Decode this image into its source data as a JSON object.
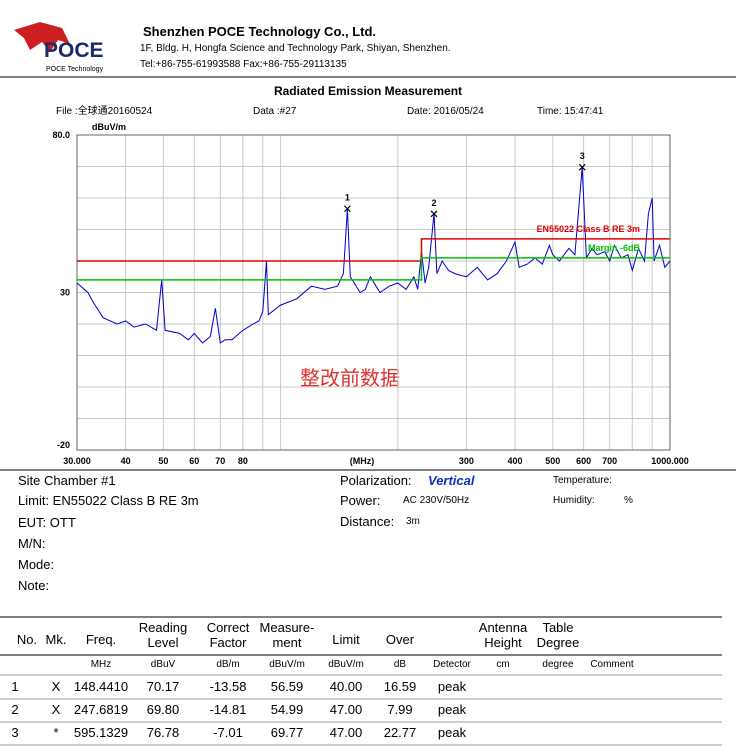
{
  "header": {
    "logo_text": "POCE",
    "logo_sub": "POCE Technology",
    "company": "Shenzhen POCE Technology Co., Ltd.",
    "address": "1F, Bldg. H, Hongfa Science and Technology Park, Shiyan, Shenzhen.",
    "contact": "Tel:+86-755-61993588   Fax:+86-755-29113135"
  },
  "report": {
    "title": "Radiated Emission Measurement",
    "file": "File :全球通20160524",
    "data": "Data :#27",
    "date": "Date: 2016/05/24",
    "time": "Time: 15:47:41"
  },
  "chart_data": {
    "type": "line",
    "xscale": "log",
    "grid": true,
    "x_label": "(MHz)",
    "y_label": "dBuV/m",
    "annotation": "整改前数据",
    "xlim": [
      30,
      1000
    ],
    "ylim": [
      -20,
      80
    ],
    "xticks": [
      {
        "value": 30,
        "label": "30.000"
      },
      40,
      50,
      60,
      70,
      80,
      300,
      400,
      500,
      600,
      700,
      {
        "value": 1000,
        "label": "1000.000"
      }
    ],
    "xminor": [
      90,
      100,
      200,
      800,
      900
    ],
    "yticks": [
      {
        "value": 80,
        "label": "80.0"
      },
      30,
      -20
    ],
    "yminor": [
      70,
      60,
      50,
      40,
      20,
      10,
      0,
      -10
    ],
    "series": [
      {
        "color": "#0000cc",
        "x": [
          30,
          32,
          33,
          35,
          38,
          40,
          42,
          45,
          48,
          49.5,
          50.5,
          55,
          58,
          60,
          63,
          66,
          68,
          70,
          72,
          75,
          80,
          85,
          88,
          90,
          92,
          93,
          100,
          110,
          120,
          130,
          140,
          145,
          148.4,
          151,
          160,
          165,
          170,
          180,
          190,
          200,
          210,
          220,
          225,
          230,
          235,
          240,
          247.7,
          252,
          260,
          270,
          280,
          300,
          320,
          340,
          360,
          380,
          400,
          410,
          430,
          450,
          470,
          490,
          500,
          520,
          550,
          570,
          595,
          610,
          630,
          650,
          680,
          700,
          720,
          750,
          780,
          800,
          830,
          860,
          880,
          900,
          910,
          940,
          970,
          1000
        ],
        "values": [
          33,
          30,
          27,
          22,
          20,
          21,
          19,
          20,
          18,
          34,
          18,
          17,
          15,
          17,
          14,
          16,
          25,
          14,
          15,
          15,
          18,
          20,
          21,
          24,
          40,
          23,
          26,
          28,
          32,
          31,
          32,
          36,
          56.6,
          35,
          30,
          31,
          35,
          30,
          32,
          33,
          31,
          35,
          31,
          43,
          33,
          38,
          55,
          36,
          40,
          37,
          36,
          35,
          38,
          34,
          36,
          40,
          46,
          38,
          39,
          41,
          39,
          45,
          42,
          40,
          44,
          42,
          69.8,
          41,
          44,
          42,
          43,
          40,
          45,
          41,
          42,
          37,
          44,
          40,
          55,
          60,
          40,
          45,
          38,
          40
        ]
      },
      {
        "name": "EN55022 Class B RE 3m",
        "color": "#e00000",
        "x": [
          30,
          230,
          230,
          1000
        ],
        "values": [
          40,
          40,
          47,
          47
        ]
      },
      {
        "name": "Margin -6dB",
        "color": "#00c000",
        "x": [
          30,
          230,
          230,
          1000
        ],
        "values": [
          34,
          34,
          41,
          41
        ]
      }
    ],
    "markers": [
      {
        "label": "1",
        "x": 148.441,
        "y": 56.59
      },
      {
        "label": "2",
        "x": 247.6819,
        "y": 54.99
      },
      {
        "label": "3",
        "x": 595.1329,
        "y": 69.77
      }
    ]
  },
  "info": {
    "site": "Site  Chamber #1",
    "limit": "Limit:  EN55022 Class B RE 3m",
    "eut": "EUT:  OTT",
    "mn": "M/N:",
    "mode": "Mode:",
    "note": "Note:",
    "polarization_label": "Polarization:",
    "polarization": "Vertical",
    "power_label": "Power:",
    "power": "AC 230V/50Hz",
    "distance_label": "Distance:",
    "distance": "3m",
    "temperature": "Temperature:",
    "humidity": "Humidity:",
    "humidity_unit": "%"
  },
  "table": {
    "headers": [
      [
        "No."
      ],
      [
        "Mk."
      ],
      [
        "Freq."
      ],
      [
        "Reading",
        "Level"
      ],
      [
        "Correct",
        "Factor"
      ],
      [
        "Measure-",
        "ment"
      ],
      [
        "Limit"
      ],
      [
        "Over"
      ],
      null,
      [
        "Antenna",
        "Height"
      ],
      [
        "Table",
        "Degree"
      ],
      null
    ],
    "units": [
      null,
      null,
      "MHz",
      "dBuV",
      "dB/m",
      "dBuV/m",
      "dBuV/m",
      "dB",
      "Detector",
      "cm",
      "degree",
      "Comment"
    ],
    "rows": [
      [
        "1",
        "X",
        "148.4410",
        "70.17",
        "-13.58",
        "56.59",
        "40.00",
        "16.59",
        "peak"
      ],
      [
        "2",
        "X",
        "247.6819",
        "69.80",
        "-14.81",
        "54.99",
        "47.00",
        "7.99",
        "peak"
      ],
      [
        "3",
        "*",
        "595.1329",
        "76.78",
        "-7.01",
        "69.77",
        "47.00",
        "22.77",
        "peak"
      ]
    ]
  }
}
